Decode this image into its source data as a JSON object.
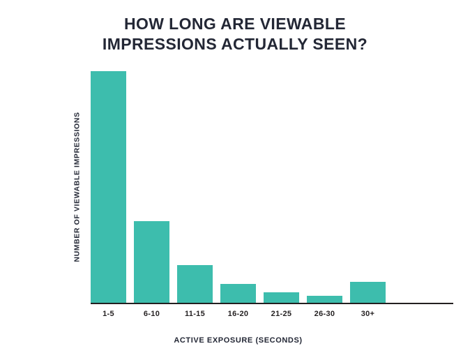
{
  "title": "HOW LONG ARE VIEWABLE IMPRESSIONS ACTUALLY SEEN?",
  "chart_data": {
    "type": "bar",
    "title": "HOW LONG ARE VIEWABLE IMPRESSIONS ACTUALLY SEEN?",
    "categories": [
      "1-5",
      "6-10",
      "11-15",
      "16-20",
      "21-25",
      "26-30",
      "30+"
    ],
    "values": [
      100,
      35,
      16,
      8,
      4.5,
      3,
      9
    ],
    "xlabel": "ACTIVE EXPOSURE (SECONDS)",
    "ylabel": "NUMBER OF VIEWABLE IMPRESSIONS",
    "ylim": [
      0,
      100
    ],
    "y_tick_labels_shown": false,
    "grid": false,
    "legend": "none",
    "bar_color": "#3DBDAD",
    "axis_color": "#231F20",
    "text_color": "#232735",
    "background": "#FFFFFF"
  }
}
